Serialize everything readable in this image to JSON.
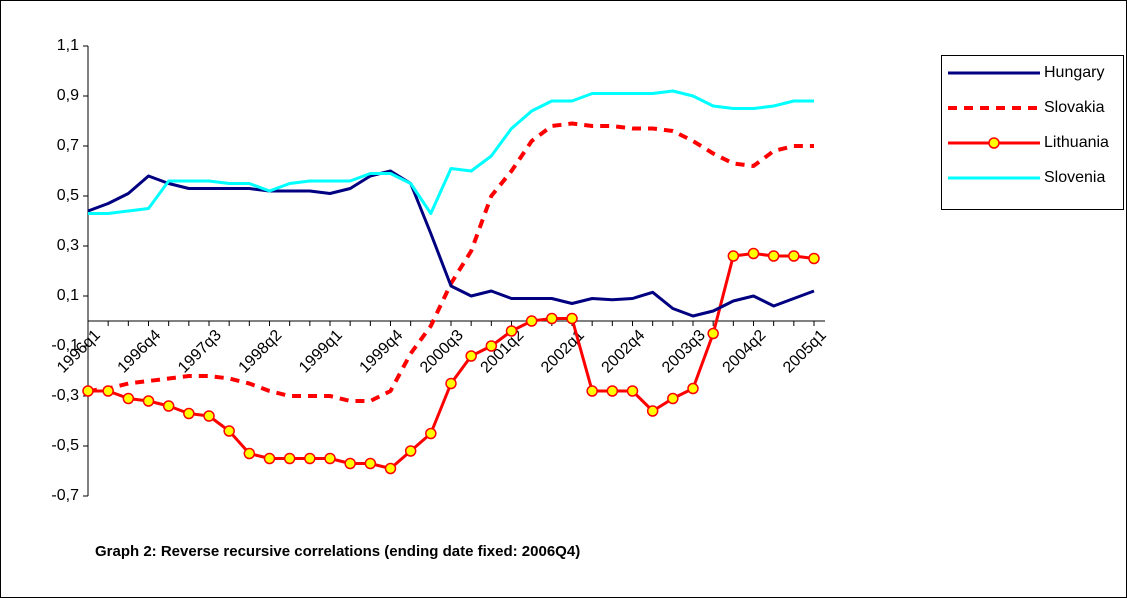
{
  "chart_data": {
    "type": "line",
    "title": "Graph 2: Reverse recursive correlations (ending date fixed: 2006Q4)",
    "categories": [
      "1996q1",
      null,
      null,
      "1996q4",
      null,
      null,
      "1997q3",
      null,
      null,
      "1998q2",
      null,
      null,
      "1999q1",
      null,
      null,
      "1999q4",
      null,
      null,
      "2000q3",
      null,
      null,
      "2001q2",
      null,
      null,
      "2002q1",
      null,
      null,
      "2002q4",
      null,
      null,
      "2003q3",
      null,
      null,
      "2004q2",
      null,
      null,
      "2005q1"
    ],
    "series": [
      {
        "name": "Hungary",
        "color": "#000080",
        "style": "solid",
        "values": [
          0.44,
          0.47,
          0.51,
          0.58,
          0.55,
          0.53,
          0.53,
          0.53,
          0.53,
          0.52,
          0.52,
          0.52,
          0.51,
          0.53,
          0.58,
          0.6,
          0.55,
          0.35,
          0.14,
          0.1,
          0.12,
          0.09,
          0.09,
          0.09,
          0.07,
          0.09,
          0.085,
          0.09,
          0.115,
          0.05,
          0.02,
          0.04,
          0.08,
          0.1,
          0.06,
          0.09,
          0.12
        ]
      },
      {
        "name": "Slovakia",
        "color": "#ff0000",
        "style": "dashed",
        "values": [
          -0.28,
          -0.27,
          -0.25,
          -0.24,
          -0.23,
          -0.22,
          -0.22,
          -0.23,
          -0.25,
          -0.28,
          -0.3,
          -0.3,
          -0.3,
          -0.32,
          -0.32,
          -0.28,
          -0.13,
          -0.02,
          0.15,
          0.28,
          0.5,
          0.6,
          0.72,
          0.78,
          0.79,
          0.78,
          0.78,
          0.77,
          0.77,
          0.76,
          0.72,
          0.67,
          0.63,
          0.62,
          0.68,
          0.7,
          0.7
        ]
      },
      {
        "name": "Lithuania",
        "color": "#ff0000",
        "style": "solid",
        "marker": "circle",
        "marker_color": "#ffff00",
        "values": [
          -0.28,
          -0.28,
          -0.31,
          -0.32,
          -0.34,
          -0.37,
          -0.38,
          -0.44,
          -0.53,
          -0.55,
          -0.55,
          -0.55,
          -0.55,
          -0.57,
          -0.57,
          -0.59,
          -0.52,
          -0.45,
          -0.25,
          -0.14,
          -0.1,
          -0.04,
          0.0,
          0.01,
          0.01,
          -0.28,
          -0.28,
          -0.28,
          -0.36,
          -0.31,
          -0.27,
          -0.05,
          0.26,
          0.27,
          0.26,
          0.26,
          0.25
        ]
      },
      {
        "name": "Slovenia",
        "color": "#00ffff",
        "style": "solid",
        "values": [
          0.43,
          0.43,
          0.44,
          0.45,
          0.56,
          0.56,
          0.56,
          0.55,
          0.55,
          0.52,
          0.55,
          0.56,
          0.56,
          0.56,
          0.59,
          0.59,
          0.55,
          0.43,
          0.61,
          0.6,
          0.66,
          0.77,
          0.84,
          0.88,
          0.88,
          0.91,
          0.91,
          0.91,
          0.91,
          0.92,
          0.9,
          0.86,
          0.85,
          0.85,
          0.86,
          0.88,
          0.88
        ]
      }
    ],
    "ylim": [
      -0.7,
      1.1
    ],
    "yticks": [
      {
        "value": -0.7,
        "label": "-0,7"
      },
      {
        "value": -0.5,
        "label": "-0,5"
      },
      {
        "value": -0.3,
        "label": "-0,3"
      },
      {
        "value": -0.1,
        "label": "-0,1"
      },
      {
        "value": 0.1,
        "label": "0,1"
      },
      {
        "value": 0.3,
        "label": "0,3"
      },
      {
        "value": 0.5,
        "label": "0,5"
      },
      {
        "value": 0.7,
        "label": "0,7"
      },
      {
        "value": 0.9,
        "label": "0,9"
      },
      {
        "value": 1.1,
        "label": "1,1"
      }
    ],
    "grid": false,
    "legend": "right"
  }
}
